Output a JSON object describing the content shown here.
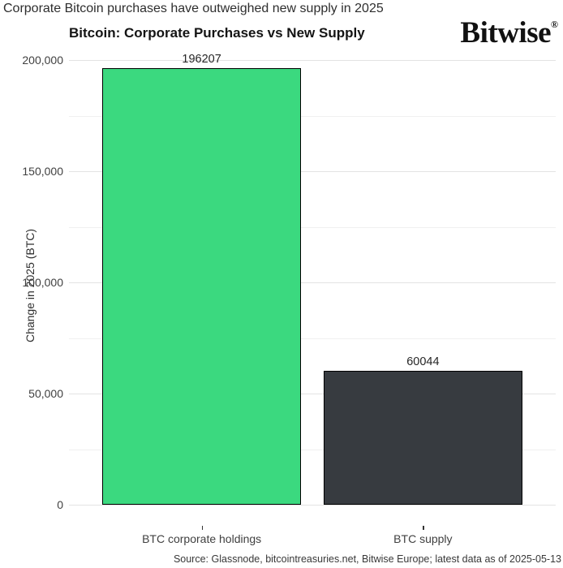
{
  "headline": "Corporate Bitcoin purchases have outweighed new supply in 2025",
  "logo": {
    "text": "Bitwise",
    "registered": "®"
  },
  "source": "Source: Glassnode, bitcointreasuries.net, Bitwise Europe; latest data as of 2025-05-13",
  "chart_data": {
    "type": "bar",
    "title": "Bitcoin: Corporate Purchases vs New Supply",
    "categories": [
      "BTC corporate holdings",
      "BTC supply"
    ],
    "values": [
      196207,
      60044
    ],
    "bar_value_labels": [
      "196207",
      "60044"
    ],
    "bar_colors": [
      "#3bd97f",
      "#373b40"
    ],
    "bar_border_color": "#000000",
    "xlabel": "",
    "ylabel": "Change in 2025 (BTC)",
    "ylim": [
      0,
      200000
    ],
    "yticks": [
      0,
      50000,
      100000,
      150000,
      200000
    ],
    "ytick_labels": [
      "0",
      "50,000",
      "100,000",
      "150,000",
      "200,000"
    ],
    "minor_yticks": [
      25000,
      75000,
      125000,
      175000
    ],
    "grid": "horizontal major+minor, light gray on white",
    "legend": "none"
  }
}
